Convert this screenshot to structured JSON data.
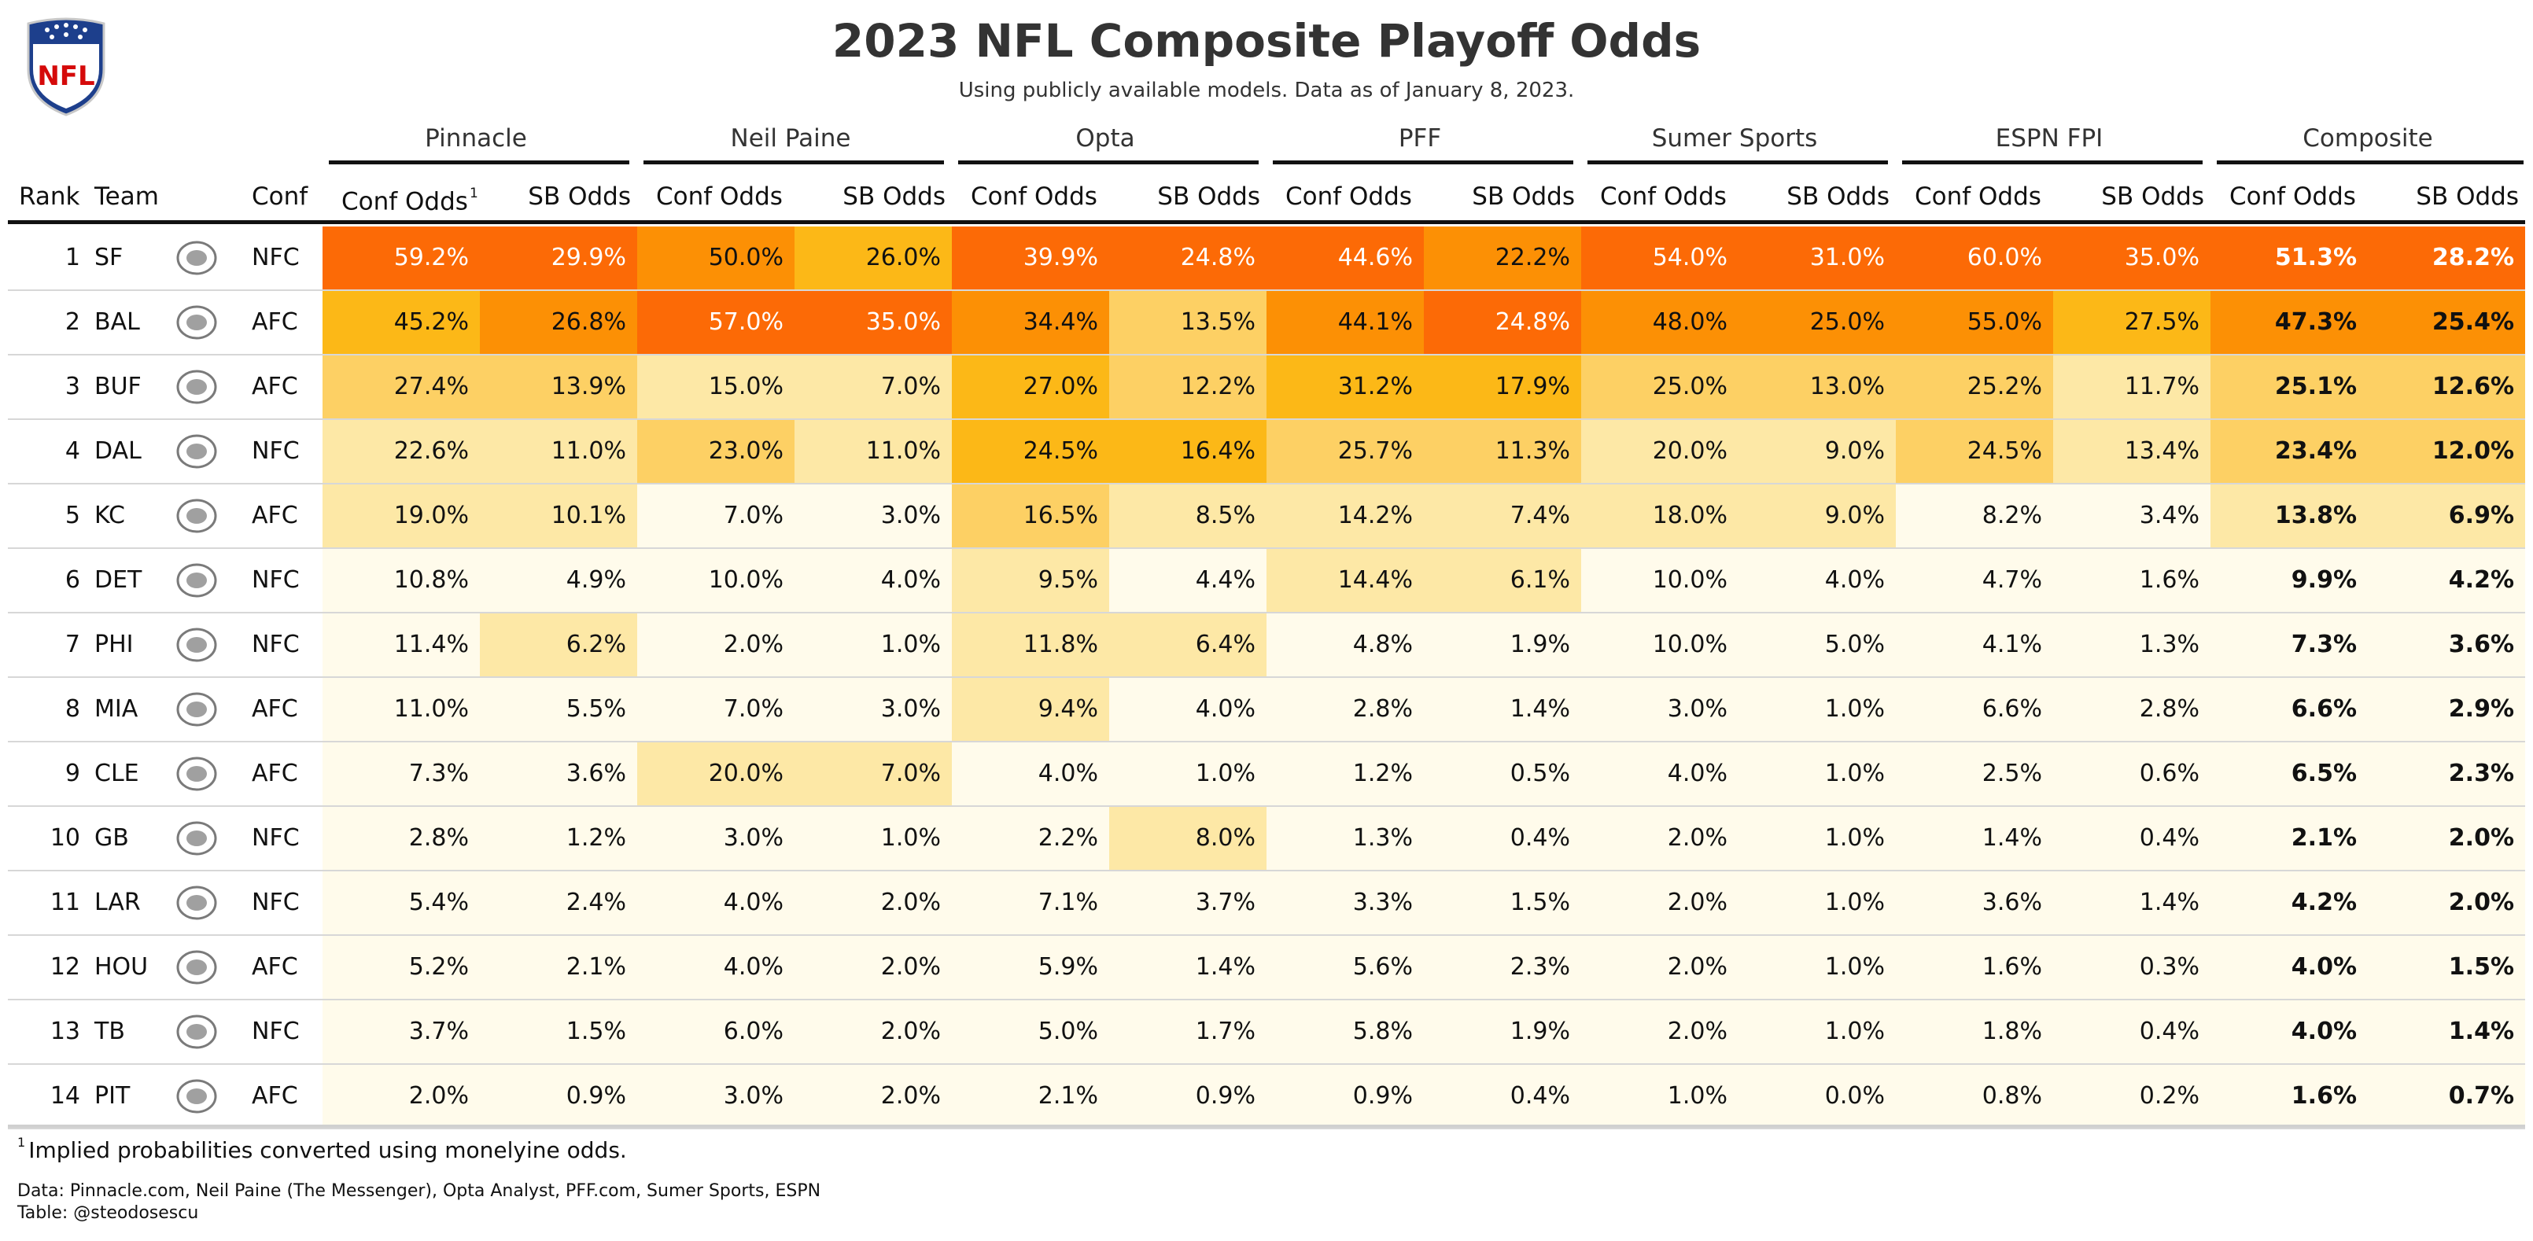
{
  "header": {
    "title": "2023 NFL Composite Playoff Odds",
    "subtitle": "Using publicly available models. Data as of January 8, 2023.",
    "logo_text": "NFL"
  },
  "footer": {
    "footnote_marker": "1",
    "footnote": "Implied probabilities converted using monelyine odds.",
    "source": "Data: Pinnacle.com, Neil Paine (The Messenger), Opta Analyst, PFF.com, Sumer Sports, ESPN",
    "credit": "Table: @steodosescu"
  },
  "colors": {
    "scale": [
      "#fffbeb",
      "#fde8a6",
      "#fdd064",
      "#fcb817",
      "#fc9005",
      "#fc6a06"
    ],
    "header_rule": "#111111",
    "row_rule": "#d7d7d7"
  },
  "chart_data": {
    "type": "table",
    "columns": {
      "rank": "Rank",
      "team": "Team",
      "conf": "Conf",
      "conf_odds": "Conf Odds",
      "conf_odds_marker": "1",
      "sb_odds": "SB Odds"
    },
    "groups": [
      "Pinnacle",
      "Neil Paine",
      "Opta",
      "PFF",
      "Sumer Sports",
      "ESPN FPI",
      "Composite"
    ],
    "rows": [
      {
        "rank": "1",
        "team": "SF",
        "team_icon": "49ers-logo-icon",
        "conf": "NFC",
        "values": [
          "59.2%",
          "29.9%",
          "50.0%",
          "26.0%",
          "39.9%",
          "24.8%",
          "44.6%",
          "22.2%",
          "54.0%",
          "31.0%",
          "60.0%",
          "35.0%",
          "51.3%",
          "28.2%"
        ]
      },
      {
        "rank": "2",
        "team": "BAL",
        "team_icon": "ravens-logo-icon",
        "conf": "AFC",
        "values": [
          "45.2%",
          "26.8%",
          "57.0%",
          "35.0%",
          "34.4%",
          "13.5%",
          "44.1%",
          "24.8%",
          "48.0%",
          "25.0%",
          "55.0%",
          "27.5%",
          "47.3%",
          "25.4%"
        ]
      },
      {
        "rank": "3",
        "team": "BUF",
        "team_icon": "bills-logo-icon",
        "conf": "AFC",
        "values": [
          "27.4%",
          "13.9%",
          "15.0%",
          "7.0%",
          "27.0%",
          "12.2%",
          "31.2%",
          "17.9%",
          "25.0%",
          "13.0%",
          "25.2%",
          "11.7%",
          "25.1%",
          "12.6%"
        ]
      },
      {
        "rank": "4",
        "team": "DAL",
        "team_icon": "cowboys-logo-icon",
        "conf": "NFC",
        "values": [
          "22.6%",
          "11.0%",
          "23.0%",
          "11.0%",
          "24.5%",
          "16.4%",
          "25.7%",
          "11.3%",
          "20.0%",
          "9.0%",
          "24.5%",
          "13.4%",
          "23.4%",
          "12.0%"
        ]
      },
      {
        "rank": "5",
        "team": "KC",
        "team_icon": "chiefs-logo-icon",
        "conf": "AFC",
        "values": [
          "19.0%",
          "10.1%",
          "7.0%",
          "3.0%",
          "16.5%",
          "8.5%",
          "14.2%",
          "7.4%",
          "18.0%",
          "9.0%",
          "8.2%",
          "3.4%",
          "13.8%",
          "6.9%"
        ]
      },
      {
        "rank": "6",
        "team": "DET",
        "team_icon": "lions-logo-icon",
        "conf": "NFC",
        "values": [
          "10.8%",
          "4.9%",
          "10.0%",
          "4.0%",
          "9.5%",
          "4.4%",
          "14.4%",
          "6.1%",
          "10.0%",
          "4.0%",
          "4.7%",
          "1.6%",
          "9.9%",
          "4.2%"
        ]
      },
      {
        "rank": "7",
        "team": "PHI",
        "team_icon": "eagles-logo-icon",
        "conf": "NFC",
        "values": [
          "11.4%",
          "6.2%",
          "2.0%",
          "1.0%",
          "11.8%",
          "6.4%",
          "4.8%",
          "1.9%",
          "10.0%",
          "5.0%",
          "4.1%",
          "1.3%",
          "7.3%",
          "3.6%"
        ]
      },
      {
        "rank": "8",
        "team": "MIA",
        "team_icon": "dolphins-logo-icon",
        "conf": "AFC",
        "values": [
          "11.0%",
          "5.5%",
          "7.0%",
          "3.0%",
          "9.4%",
          "4.0%",
          "2.8%",
          "1.4%",
          "3.0%",
          "1.0%",
          "6.6%",
          "2.8%",
          "6.6%",
          "2.9%"
        ]
      },
      {
        "rank": "9",
        "team": "CLE",
        "team_icon": "browns-logo-icon",
        "conf": "AFC",
        "values": [
          "7.3%",
          "3.6%",
          "20.0%",
          "7.0%",
          "4.0%",
          "1.0%",
          "1.2%",
          "0.5%",
          "4.0%",
          "1.0%",
          "2.5%",
          "0.6%",
          "6.5%",
          "2.3%"
        ]
      },
      {
        "rank": "10",
        "team": "GB",
        "team_icon": "packers-logo-icon",
        "conf": "NFC",
        "values": [
          "2.8%",
          "1.2%",
          "3.0%",
          "1.0%",
          "2.2%",
          "8.0%",
          "1.3%",
          "0.4%",
          "2.0%",
          "1.0%",
          "1.4%",
          "0.4%",
          "2.1%",
          "2.0%"
        ]
      },
      {
        "rank": "11",
        "team": "LAR",
        "team_icon": "rams-logo-icon",
        "conf": "NFC",
        "values": [
          "5.4%",
          "2.4%",
          "4.0%",
          "2.0%",
          "7.1%",
          "3.7%",
          "3.3%",
          "1.5%",
          "2.0%",
          "1.0%",
          "3.6%",
          "1.4%",
          "4.2%",
          "2.0%"
        ]
      },
      {
        "rank": "12",
        "team": "HOU",
        "team_icon": "texans-logo-icon",
        "conf": "AFC",
        "values": [
          "5.2%",
          "2.1%",
          "4.0%",
          "2.0%",
          "5.9%",
          "1.4%",
          "5.6%",
          "2.3%",
          "2.0%",
          "1.0%",
          "1.6%",
          "0.3%",
          "4.0%",
          "1.5%"
        ]
      },
      {
        "rank": "13",
        "team": "TB",
        "team_icon": "buccaneers-logo-icon",
        "conf": "NFC",
        "values": [
          "3.7%",
          "1.5%",
          "6.0%",
          "2.0%",
          "5.0%",
          "1.7%",
          "5.8%",
          "1.9%",
          "2.0%",
          "1.0%",
          "1.8%",
          "0.4%",
          "4.0%",
          "1.4%"
        ]
      },
      {
        "rank": "14",
        "team": "PIT",
        "team_icon": "steelers-logo-icon",
        "conf": "AFC",
        "values": [
          "2.0%",
          "0.9%",
          "3.0%",
          "2.0%",
          "2.1%",
          "0.9%",
          "0.9%",
          "0.4%",
          "1.0%",
          "0.0%",
          "0.8%",
          "0.2%",
          "1.6%",
          "0.7%"
        ]
      }
    ]
  }
}
